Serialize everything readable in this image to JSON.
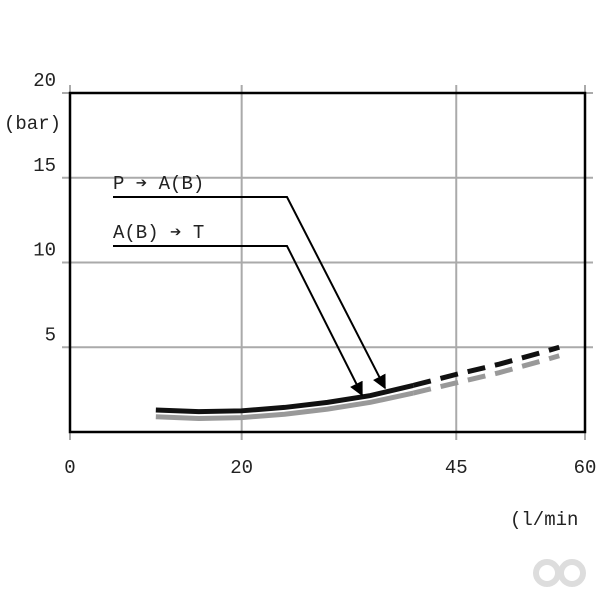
{
  "chart_data": {
    "type": "line",
    "y_label": "(bar)",
    "x_label": "(l/min",
    "xlim": [
      0,
      60
    ],
    "xticks": [
      0,
      20,
      45,
      60
    ],
    "ylim": [
      0,
      20
    ],
    "yticks": [
      5,
      10,
      15,
      20
    ],
    "grid": true,
    "series": [
      {
        "color": "#111111",
        "line_style": "solid",
        "x": [
          10,
          15,
          20,
          25,
          30,
          35,
          40
        ],
        "values": [
          1.3,
          1.2,
          1.25,
          1.45,
          1.75,
          2.15,
          2.75
        ]
      },
      {
        "color": "#111111",
        "line_style": "dashed",
        "x": [
          40,
          45,
          50,
          55,
          57
        ],
        "values": [
          2.75,
          3.4,
          4.0,
          4.7,
          5.0
        ]
      },
      {
        "color": "#999999",
        "line_style": "solid",
        "x": [
          10,
          15,
          20,
          25,
          30,
          35,
          40
        ],
        "values": [
          0.9,
          0.8,
          0.85,
          1.05,
          1.35,
          1.75,
          2.3
        ]
      },
      {
        "color": "#999999",
        "line_style": "dashed",
        "x": [
          40,
          45,
          50,
          55,
          57
        ],
        "values": [
          2.3,
          2.9,
          3.5,
          4.2,
          4.5
        ]
      }
    ],
    "annotations": [
      "P ➔ A(B)",
      "A(B) ➔ T"
    ]
  }
}
